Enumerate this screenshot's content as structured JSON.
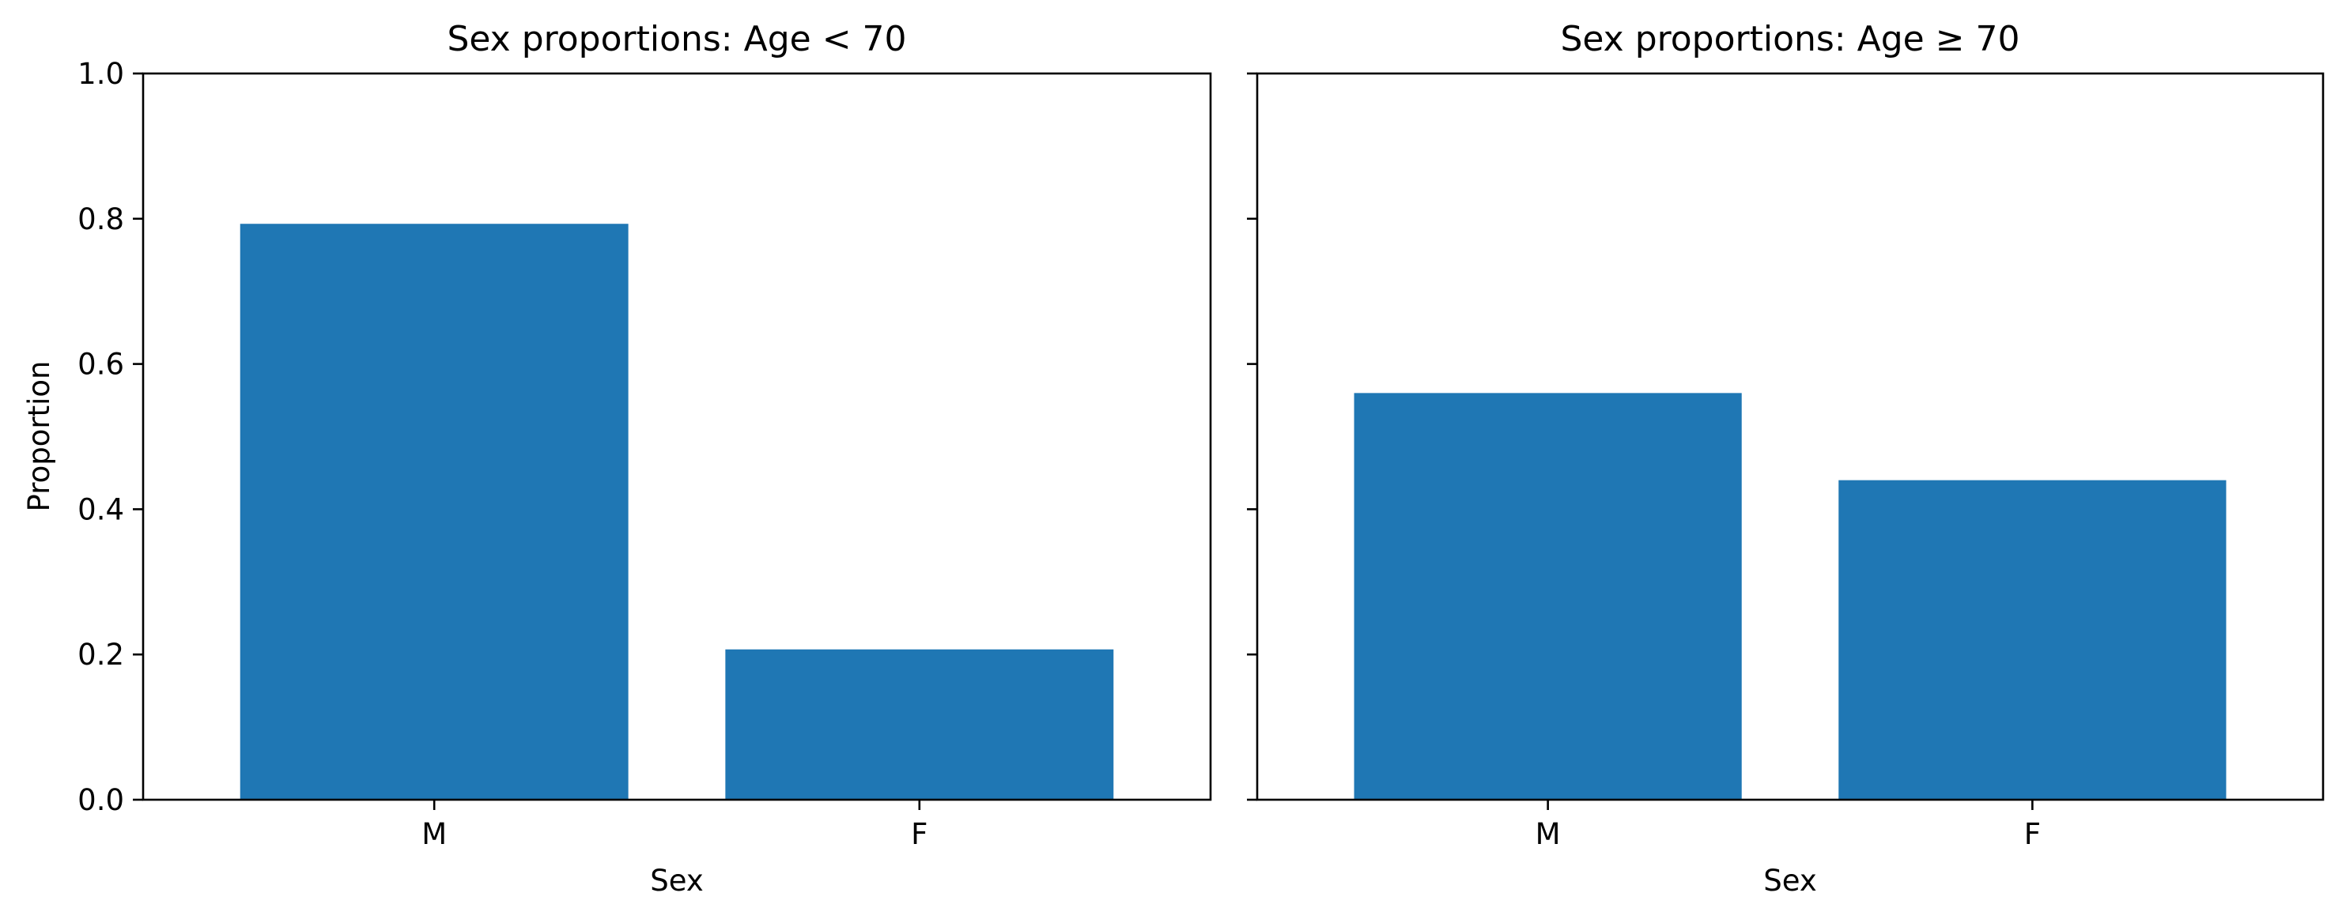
{
  "chart_data": [
    {
      "type": "bar",
      "title": "Sex proportions: Age < 70",
      "xlabel": "Sex",
      "ylabel": "Proportion",
      "categories": [
        "M",
        "F"
      ],
      "values": [
        0.793,
        0.207
      ],
      "ylim": [
        0,
        1.0
      ],
      "yticks": [
        "0.0",
        "0.2",
        "0.4",
        "0.6",
        "0.8",
        "1.0"
      ],
      "grid": false,
      "color": "#1f77b4"
    },
    {
      "type": "bar",
      "title": "Sex proportions: Age ≥ 70",
      "xlabel": "Sex",
      "ylabel": "",
      "categories": [
        "M",
        "F"
      ],
      "values": [
        0.56,
        0.44
      ],
      "ylim": [
        0,
        1.0
      ],
      "yticks": [],
      "grid": false,
      "color": "#1f77b4"
    }
  ]
}
